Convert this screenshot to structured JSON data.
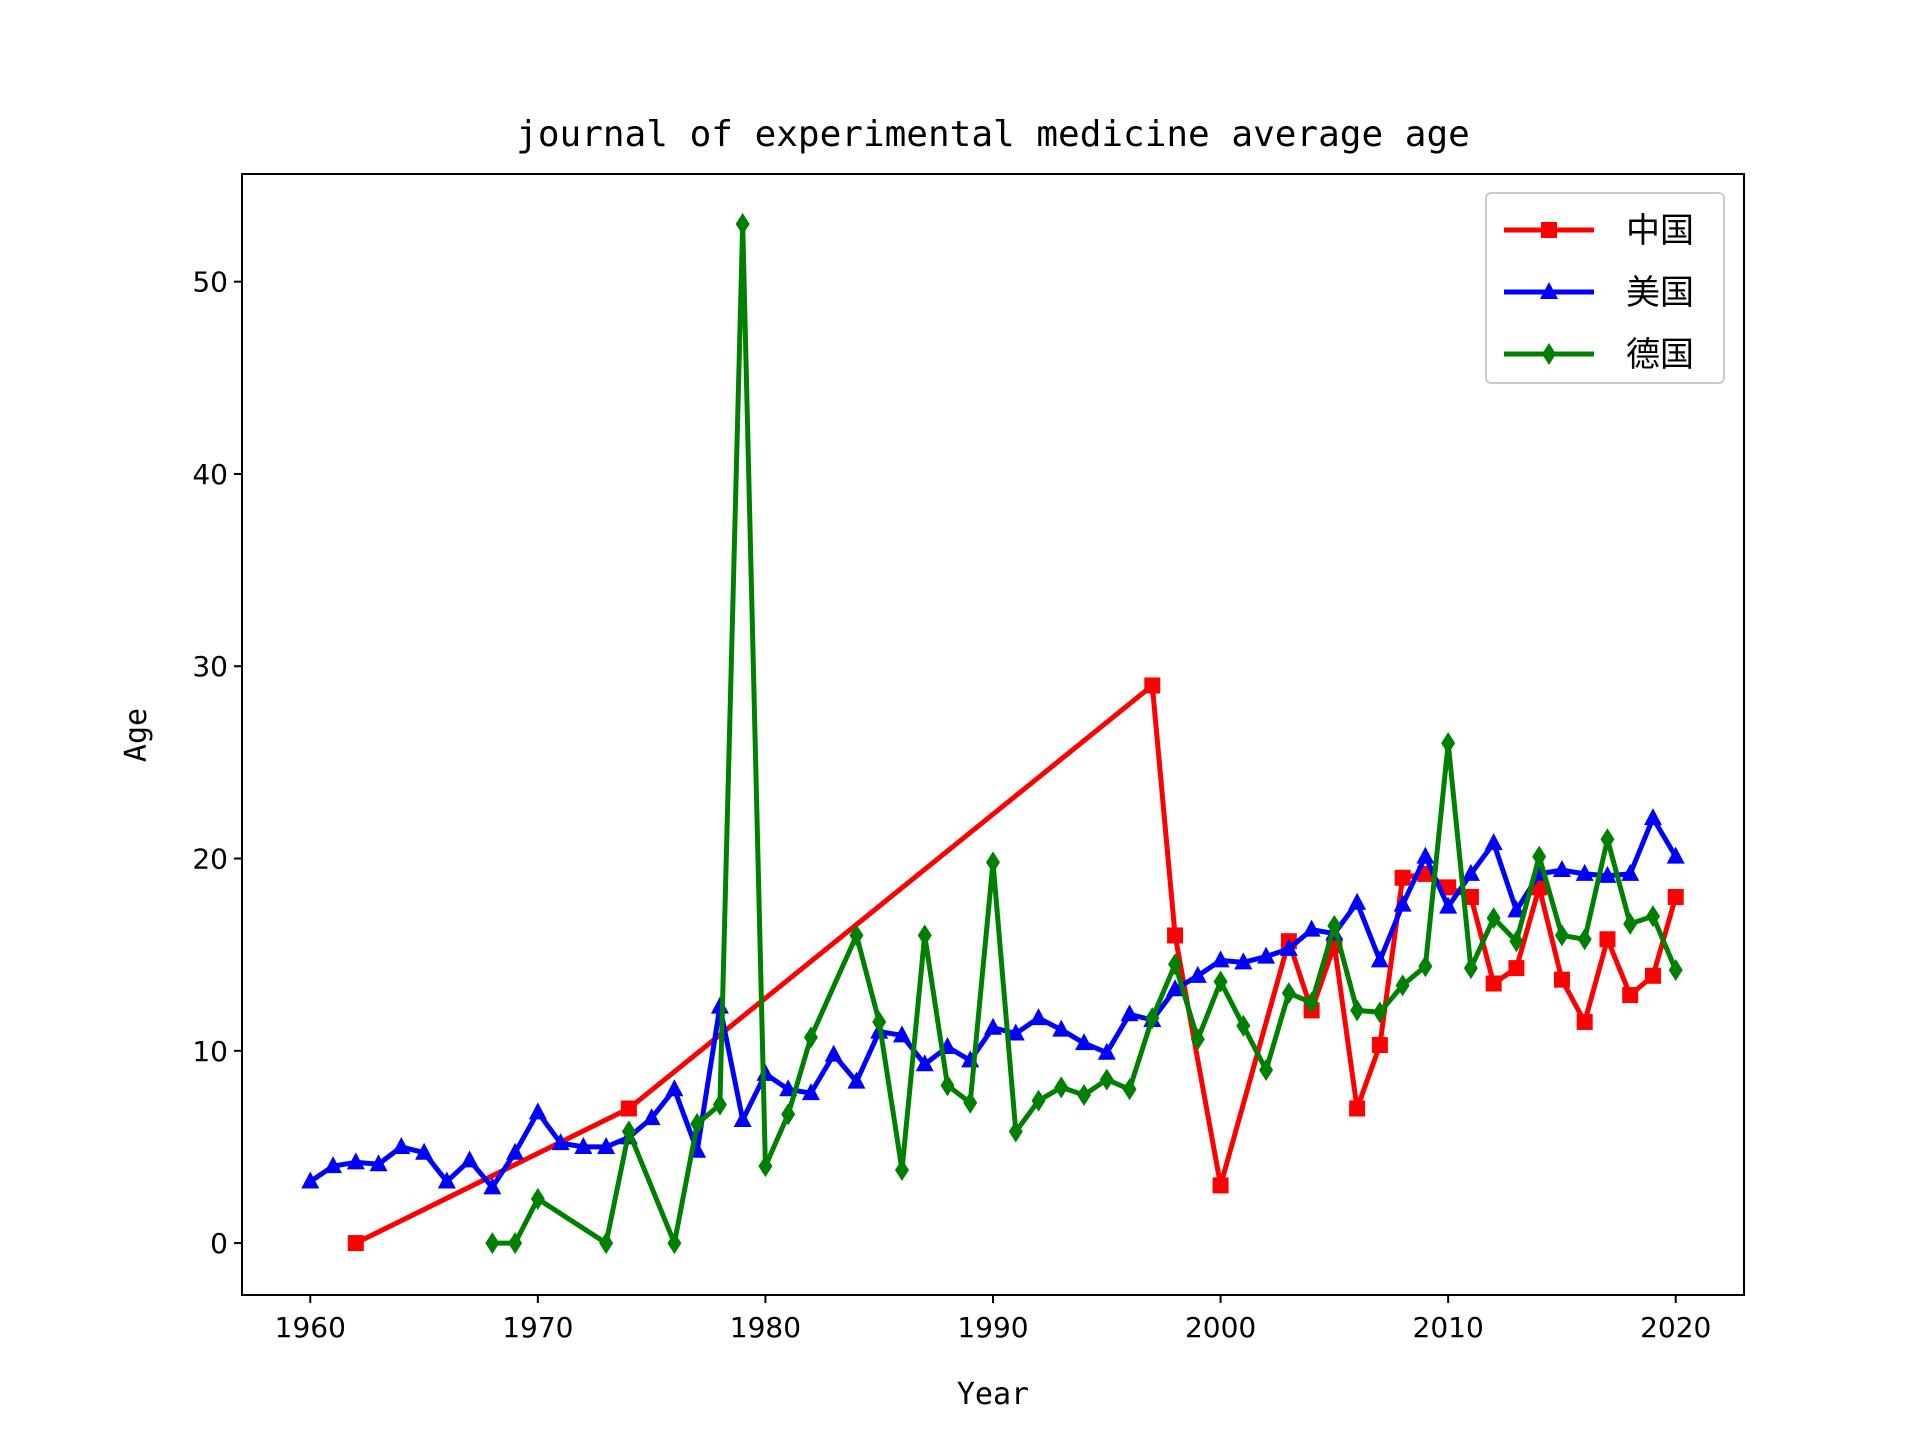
{
  "chart_data": {
    "type": "line",
    "title": "journal of experimental medicine average age",
    "xlabel": "Year",
    "ylabel": "Age",
    "xlim": [
      1957,
      2023
    ],
    "ylim": [
      -2.7,
      55.6
    ],
    "xticks": [
      1960,
      1970,
      1980,
      1990,
      2000,
      2010,
      2020
    ],
    "yticks": [
      0,
      10,
      20,
      30,
      40,
      50
    ],
    "grid": false,
    "legend_position": "top-right",
    "series": [
      {
        "name": "中国",
        "color": "#ff0000",
        "marker": "square",
        "x": [
          1962,
          1974,
          1997,
          1998,
          2000,
          2003,
          2004,
          2005,
          2006,
          2007,
          2008,
          2009,
          2010,
          2011,
          2012,
          2013,
          2014,
          2015,
          2016,
          2017,
          2018,
          2019,
          2020
        ],
        "y": [
          0,
          7,
          29,
          16,
          3,
          15.7,
          12.1,
          15.5,
          7,
          10.3,
          19,
          19.2,
          18.5,
          18,
          13.5,
          14.3,
          18.5,
          13.7,
          11.5,
          15.8,
          12.9,
          13.9,
          18
        ]
      },
      {
        "name": "美国",
        "color": "#0000ff",
        "marker": "triangle",
        "x": [
          1960,
          1961,
          1962,
          1963,
          1964,
          1965,
          1966,
          1967,
          1968,
          1969,
          1970,
          1971,
          1972,
          1973,
          1974,
          1975,
          1976,
          1977,
          1978,
          1979,
          1980,
          1981,
          1982,
          1983,
          1984,
          1985,
          1986,
          1987,
          1988,
          1989,
          1990,
          1991,
          1992,
          1993,
          1994,
          1995,
          1996,
          1997,
          1998,
          1999,
          2000,
          2001,
          2002,
          2003,
          2004,
          2005,
          2006,
          2007,
          2008,
          2009,
          2010,
          2011,
          2012,
          2013,
          2014,
          2015,
          2016,
          2017,
          2018,
          2019,
          2020
        ],
        "y": [
          3.2,
          4,
          4.2,
          4.1,
          5,
          4.7,
          3.2,
          4.3,
          2.9,
          4.7,
          6.8,
          5.2,
          5,
          5,
          5.5,
          6.5,
          8,
          4.8,
          12.3,
          6.4,
          8.8,
          8,
          7.8,
          9.8,
          8.4,
          11,
          10.8,
          9.3,
          10.2,
          9.5,
          11.2,
          10.9,
          11.7,
          11.1,
          10.4,
          9.9,
          11.9,
          11.6,
          13.2,
          13.9,
          14.7,
          14.6,
          14.9,
          15.3,
          16.3,
          16.1,
          17.7,
          14.7,
          17.6,
          20.1,
          17.5,
          19.2,
          20.8,
          17.3,
          19.2,
          19.4,
          19.2,
          19.1,
          19.2,
          22.1,
          20.1
        ]
      },
      {
        "name": "德国",
        "color": "#008000",
        "marker": "diamond",
        "x": [
          1968,
          1969,
          1970,
          1973,
          1974,
          1976,
          1977,
          1978,
          1979,
          1980,
          1981,
          1982,
          1984,
          1985,
          1986,
          1987,
          1988,
          1989,
          1990,
          1991,
          1992,
          1993,
          1994,
          1995,
          1996,
          1997,
          1998,
          1999,
          2000,
          2001,
          2002,
          2003,
          2004,
          2005,
          2006,
          2007,
          2008,
          2009,
          2010,
          2011,
          2012,
          2013,
          2014,
          2015,
          2016,
          2017,
          2018,
          2019,
          2020
        ],
        "y": [
          0,
          0,
          2.3,
          0,
          5.8,
          0,
          6.2,
          7.2,
          53,
          4,
          6.7,
          10.7,
          16,
          11.5,
          3.8,
          16,
          8.2,
          7.3,
          19.8,
          5.8,
          7.4,
          8.1,
          7.7,
          8.5,
          8,
          11.7,
          14.5,
          10.6,
          13.6,
          11.3,
          9,
          13,
          12.5,
          16.5,
          12.1,
          12,
          13.4,
          14.4,
          26,
          14.3,
          16.9,
          15.7,
          20.1,
          16,
          15.8,
          21,
          16.6,
          17,
          14.2
        ]
      }
    ]
  }
}
